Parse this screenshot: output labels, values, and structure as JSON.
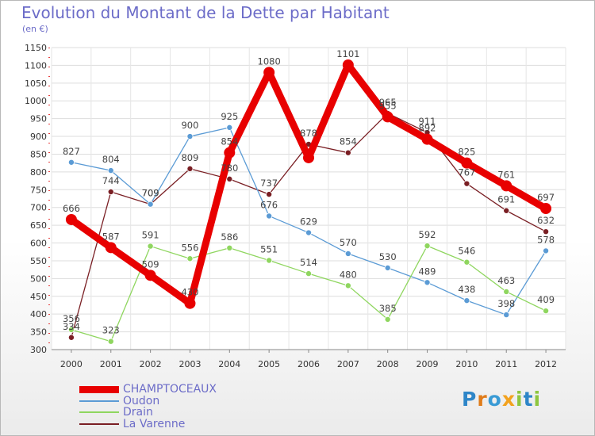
{
  "title": "Evolution du Montant de la Dette par Habitant",
  "subtitle": "(en €)",
  "logo": {
    "text": "Proxiti",
    "letter_colors": [
      "#2e86c8",
      "#e07c1a",
      "#3a9bd5",
      "#f2a21e",
      "#8ec63f",
      "#2e86c8",
      "#8ec63f"
    ]
  },
  "chart_data": {
    "type": "line",
    "title": "Evolution du Montant de la Dette par Habitant",
    "subtitle": "(en €)",
    "xlabel": "",
    "ylabel": "",
    "x": [
      "2000",
      "2001",
      "2002",
      "2003",
      "2004",
      "2005",
      "2006",
      "2007",
      "2008",
      "2009",
      "2010",
      "2011",
      "2012"
    ],
    "ylim": [
      300,
      1150
    ],
    "yticks": [
      300,
      350,
      400,
      450,
      500,
      550,
      600,
      650,
      700,
      750,
      800,
      850,
      900,
      950,
      1000,
      1050,
      1100,
      1150
    ],
    "grid": "horizontal",
    "legend_position": "bottom-left",
    "series": [
      {
        "name": "CHAMPTOCEAUX",
        "color": "#e80000",
        "values": [
          666,
          587,
          509,
          430,
          854,
          1080,
          840,
          1101,
          955,
          892,
          825,
          761,
          697
        ],
        "labels": [
          "666",
          "587",
          "509",
          "430",
          "854",
          "1080",
          "",
          "1101",
          "955",
          "892",
          "825",
          "761",
          "697"
        ]
      },
      {
        "name": "Oudon",
        "color": "#5b9bd5",
        "values": [
          827,
          804,
          709,
          900,
          925,
          676,
          629,
          570,
          530,
          489,
          438,
          398,
          578
        ],
        "labels": [
          "827",
          "804",
          "709",
          "900",
          "925",
          "676",
          "629",
          "570",
          "530",
          "489",
          "438",
          "398",
          "578"
        ]
      },
      {
        "name": "Drain",
        "color": "#8fd65f",
        "values": [
          356,
          323,
          591,
          556,
          586,
          551,
          514,
          480,
          385,
          592,
          546,
          463,
          409
        ],
        "labels": [
          "356",
          "323",
          "591",
          "556",
          "586",
          "551",
          "514",
          "480",
          "385",
          "592",
          "546",
          "463",
          "409"
        ]
      },
      {
        "name": "La Varenne",
        "color": "#7a1f24",
        "values": [
          334,
          744,
          709,
          809,
          780,
          737,
          878,
          854,
          965,
          911,
          767,
          691,
          632
        ],
        "labels": [
          "334",
          "744",
          "709",
          "809",
          "780",
          "737",
          "878",
          "854",
          "965",
          "911",
          "767",
          "691",
          "632"
        ]
      }
    ]
  }
}
